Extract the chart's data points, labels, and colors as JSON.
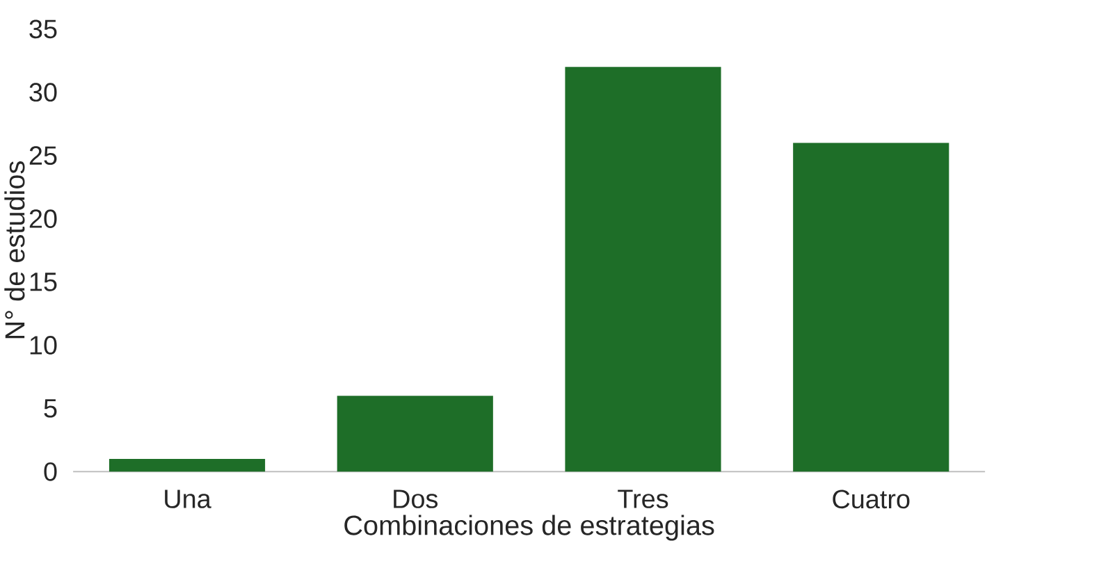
{
  "chart_data": {
    "type": "bar",
    "xlabel": "Combinaciones de estrategias",
    "ylabel": "N° de estudios",
    "categories": [
      "Una",
      "Dos",
      "Tres",
      "Cuatro"
    ],
    "values": [
      1,
      6,
      32,
      26
    ],
    "color": "#1e6e28",
    "ylim": [
      0,
      35
    ],
    "yticks": [
      0,
      5,
      10,
      15,
      20,
      25,
      30,
      35
    ],
    "grid": false
  }
}
